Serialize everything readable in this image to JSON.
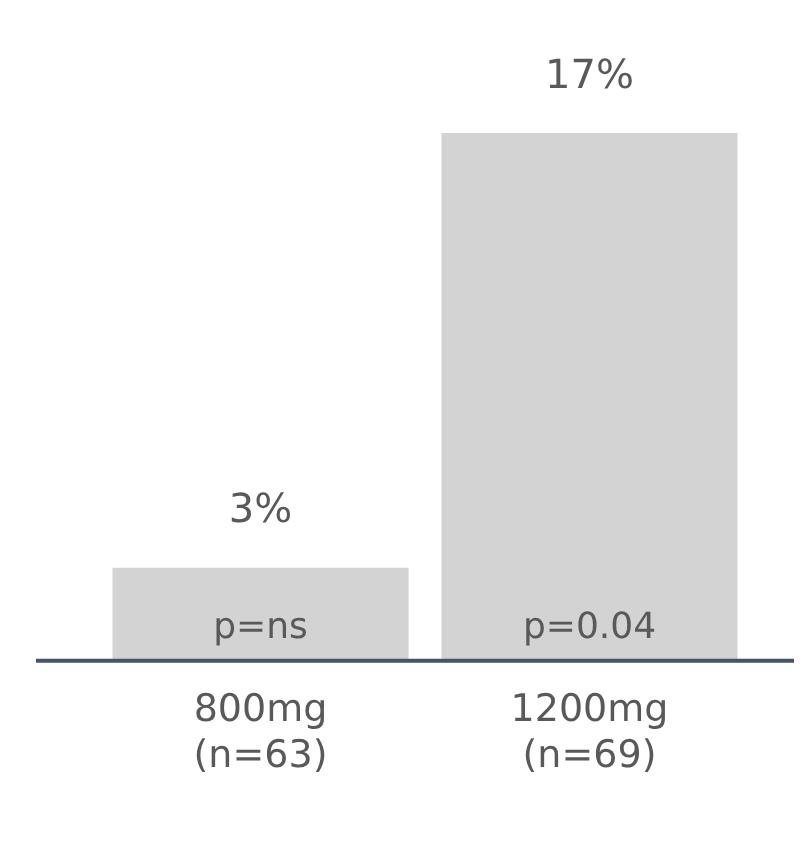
{
  "chart_data": {
    "type": "bar",
    "categories": [
      "800mg (n=63)",
      "1200mg (n=69)"
    ],
    "values": [
      3,
      17
    ],
    "color": "#d4d3d3",
    "value_labels": [
      "3%",
      "17%"
    ],
    "legend": false,
    "annotations": [
      "p=ns",
      "p=0.04"
    ]
  }
}
